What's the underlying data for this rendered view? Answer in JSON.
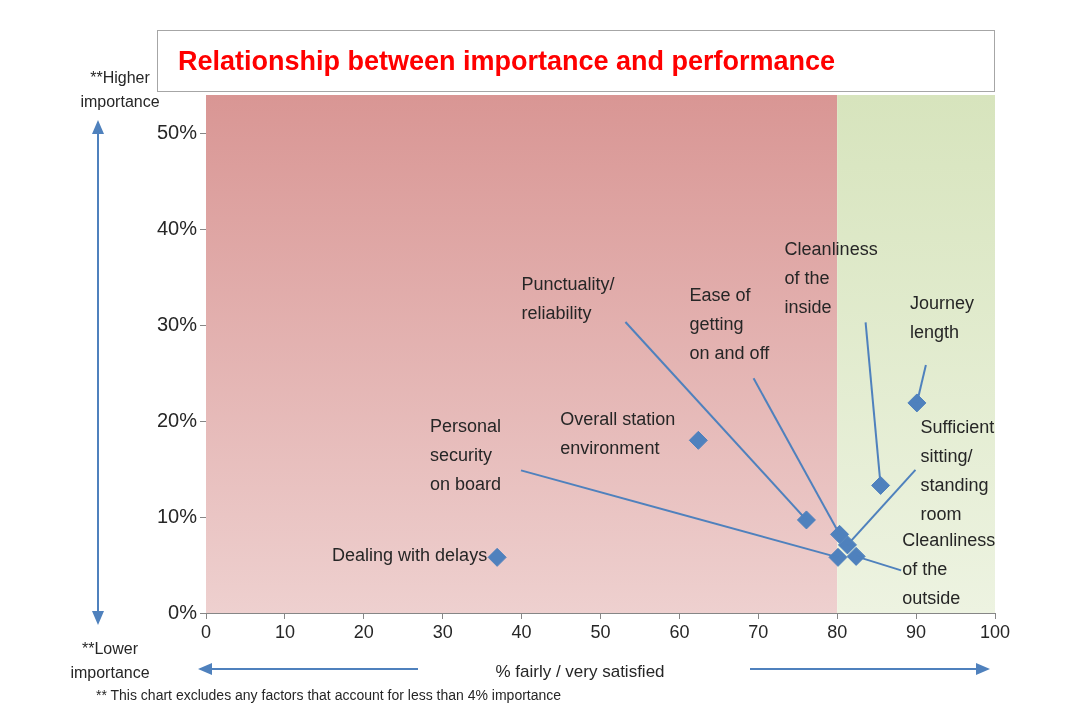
{
  "chart_data": {
    "type": "scatter",
    "title": "Relationship between importance and performance",
    "xlabel": "% fairly / very satisfied",
    "xlim": [
      0,
      100
    ],
    "xticks": [
      0,
      10,
      20,
      30,
      40,
      50,
      60,
      70,
      80,
      90,
      100
    ],
    "ylim": [
      0,
      54
    ],
    "yticks": [
      {
        "value": 0,
        "label": "0%"
      },
      {
        "value": 10,
        "label": "10%"
      },
      {
        "value": 20,
        "label": "20%"
      },
      {
        "value": 30,
        "label": "30%"
      },
      {
        "value": 40,
        "label": "40%"
      },
      {
        "value": 50,
        "label": "50%"
      }
    ],
    "grid": false,
    "legend": false,
    "marker": "diamond",
    "series": [
      {
        "color": "#4f81bd",
        "x": [
          36.9,
          62.4,
          76.1,
          80.3,
          80.1,
          81.3,
          82.4,
          85.5,
          90.1
        ],
        "values": [
          5.8,
          18.0,
          9.7,
          8.2,
          5.8,
          7.1,
          5.9,
          13.3,
          21.9
        ]
      }
    ],
    "bands": [
      {
        "axis": "x",
        "from": 0,
        "to": 80,
        "color": "#d99694"
      },
      {
        "axis": "x",
        "from": 80,
        "to": 100,
        "color": "#d7e4bd"
      }
    ],
    "annotations": [
      {
        "text": "Dealing with delays",
        "x": 36.9,
        "y": 5.8
      },
      {
        "text": "Overall station environment",
        "x": 62.4,
        "y": 18.0
      },
      {
        "text": "Punctuality/ reliability",
        "x": 76.1,
        "y": 9.7
      },
      {
        "text": "Ease of getting on and off",
        "x": 80.3,
        "y": 8.2
      },
      {
        "text": "Personal security on board",
        "x": 80.1,
        "y": 5.8
      },
      {
        "text": "Sufficient sitting/ standing room",
        "x": 81.3,
        "y": 7.1
      },
      {
        "text": "Cleanliness of the outside",
        "x": 82.4,
        "y": 5.9
      },
      {
        "text": "Cleanliness of the inside",
        "x": 85.5,
        "y": 13.3
      },
      {
        "text": "Journey length",
        "x": 90.1,
        "y": 21.9
      },
      "**Higher importance",
      "**Lower importance",
      "** This chart excludes any factors that account for less than 4% importance"
    ]
  }
}
